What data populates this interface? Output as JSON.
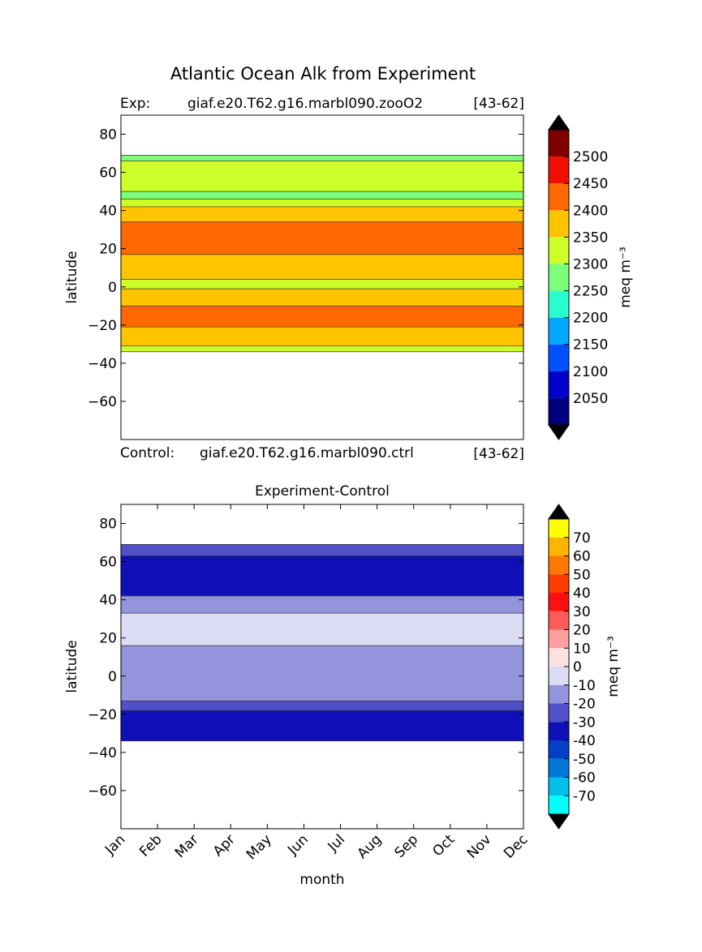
{
  "figure_title": "Atlantic Ocean Alk from Experiment",
  "chart_data": [
    {
      "type": "contour",
      "id": "top",
      "exp_label": "Exp:",
      "exp_name": "giaf.e20.T62.g16.marbl090.zooO2",
      "exp_range": "[43-62]",
      "control_label": "Control:",
      "control_name": "giaf.e20.T62.g16.marbl090.ctrl",
      "control_range": "[43-62]",
      "ylabel": "latitude",
      "ylim": [
        -80,
        90
      ],
      "xlim": [
        0,
        11
      ],
      "yticks": [
        80,
        60,
        40,
        20,
        0,
        -20,
        -40,
        -60
      ],
      "yticklabels": [
        "80",
        "60",
        "40",
        "20",
        "0",
        "−20",
        "−40",
        "−60"
      ],
      "data_lat_range": [
        -34,
        69
      ],
      "bands": [
        {
          "from": 66,
          "to": 69,
          "value": 2275
        },
        {
          "from": 50,
          "to": 66,
          "value": 2325
        },
        {
          "from": 46,
          "to": 50,
          "value": 2275
        },
        {
          "from": 42,
          "to": 46,
          "value": 2325
        },
        {
          "from": 34,
          "to": 42,
          "value": 2375
        },
        {
          "from": 17,
          "to": 34,
          "value": 2425
        },
        {
          "from": 4,
          "to": 17,
          "value": 2375
        },
        {
          "from": -1,
          "to": 4,
          "value": 2325
        },
        {
          "from": -10,
          "to": -1,
          "value": 2375
        },
        {
          "from": -21,
          "to": -10,
          "value": 2425
        },
        {
          "from": -31,
          "to": -21,
          "value": 2375
        },
        {
          "from": -34,
          "to": -31,
          "value": 2325
        }
      ],
      "colorbar": {
        "label": "meq m⁻³",
        "levels": [
          2000,
          2050,
          2100,
          2150,
          2200,
          2250,
          2300,
          2350,
          2400,
          2450,
          2500,
          2550
        ],
        "colors": [
          "#00007f",
          "#0000cd",
          "#0050ff",
          "#00a8ff",
          "#29ffcd",
          "#7dff7a",
          "#cdff29",
          "#ffc400",
          "#ff6800",
          "#f00f00",
          "#7f0000"
        ],
        "under_color": "#000000",
        "over_color": "#000000",
        "ticklabels": [
          "2050",
          "2100",
          "2150",
          "2200",
          "2250",
          "2300",
          "2350",
          "2400",
          "2450",
          "2500"
        ]
      }
    },
    {
      "type": "contour",
      "id": "bottom",
      "title": "Experiment-Control",
      "xlabel": "month",
      "ylabel": "latitude",
      "ylim": [
        -80,
        90
      ],
      "xlim": [
        0,
        11
      ],
      "xticklabels": [
        "Jan",
        "Feb",
        "Mar",
        "Apr",
        "May",
        "Jun",
        "Jul",
        "Aug",
        "Sep",
        "Oct",
        "Nov",
        "Dec"
      ],
      "yticks": [
        80,
        60,
        40,
        20,
        0,
        -20,
        -40,
        -60
      ],
      "yticklabels": [
        "80",
        "60",
        "40",
        "20",
        "0",
        "−20",
        "−40",
        "−60"
      ],
      "data_lat_range": [
        -34,
        69
      ],
      "bands": [
        {
          "from": 63,
          "to": 69,
          "value": -25
        },
        {
          "from": 42,
          "to": 63,
          "value": -35
        },
        {
          "from": 33,
          "to": 42,
          "value": -15
        },
        {
          "from": 16,
          "to": 33,
          "value": -5
        },
        {
          "from": -13,
          "to": 16,
          "value": -15
        },
        {
          "from": -18,
          "to": -13,
          "value": -25
        },
        {
          "from": -34,
          "to": -18,
          "value": -35
        }
      ],
      "colorbar": {
        "label": "meq m⁻³",
        "levels": [
          -80,
          -70,
          -60,
          -50,
          -40,
          -30,
          -20,
          -10,
          0,
          10,
          20,
          30,
          40,
          50,
          60,
          70,
          80
        ],
        "colors": [
          "#00ffff",
          "#00c0e8",
          "#0078d8",
          "#0040c8",
          "#1010b8",
          "#5050c8",
          "#9494dc",
          "#dcdcf4",
          "#ffe0e0",
          "#ffa0a0",
          "#ff5a5a",
          "#ff1010",
          "#ff3c00",
          "#ff7800",
          "#ffb400",
          "#ffff00"
        ],
        "under_color": "#000000",
        "over_color": "#000000",
        "ticklabels": [
          "-70",
          "-60",
          "-50",
          "-40",
          "-30",
          "-20",
          "-10",
          "0",
          "10",
          "20",
          "30",
          "40",
          "50",
          "60",
          "70"
        ]
      }
    }
  ]
}
